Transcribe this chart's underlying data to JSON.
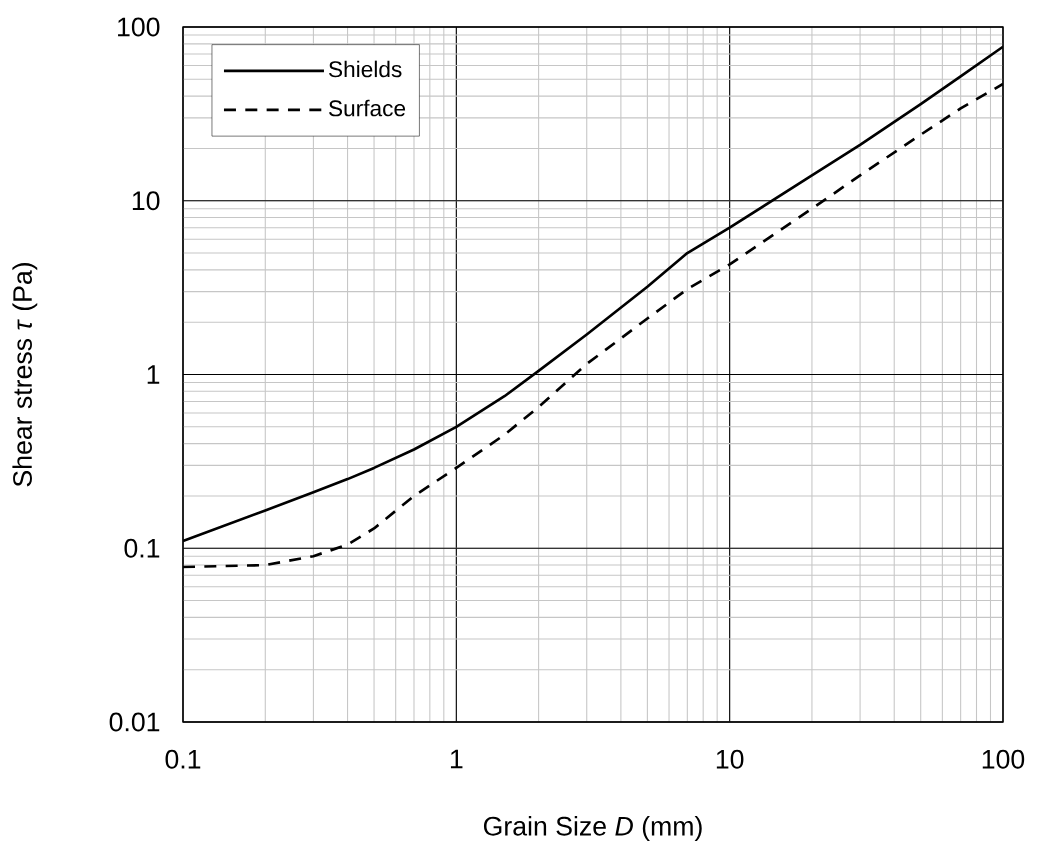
{
  "chart_data": {
    "type": "line",
    "xlabel": "Grain Size *D* (mm)",
    "ylabel": "Shear stress *τ* (Pa)",
    "log": "xy",
    "grid": true,
    "legend": "top left",
    "xlim": [
      0.1,
      100
    ],
    "ylim": [
      0.01,
      100
    ],
    "xticks": [
      0.1,
      1,
      10,
      100
    ],
    "yticks": [
      0.01,
      0.1,
      1,
      10,
      100
    ],
    "x": [
      0.1,
      0.2,
      0.3,
      0.4,
      0.5,
      0.7,
      1,
      1.5,
      2,
      3,
      5,
      7,
      10,
      20,
      30,
      50,
      70,
      100
    ],
    "series": [
      {
        "name": "Shields",
        "color": "#000000",
        "line_style": "solid",
        "values": [
          0.11,
          0.165,
          0.21,
          0.25,
          0.29,
          0.37,
          0.5,
          0.75,
          1.05,
          1.7,
          3.2,
          5,
          7,
          14,
          21,
          36,
          52,
          77
        ]
      },
      {
        "name": "Surface",
        "color": "#000000",
        "line_style": "dashed",
        "values": [
          0.078,
          0.08,
          0.09,
          0.105,
          0.13,
          0.2,
          0.29,
          0.45,
          0.65,
          1.15,
          2.1,
          3.1,
          4.3,
          9,
          14,
          24,
          34,
          47
        ]
      }
    ]
  }
}
